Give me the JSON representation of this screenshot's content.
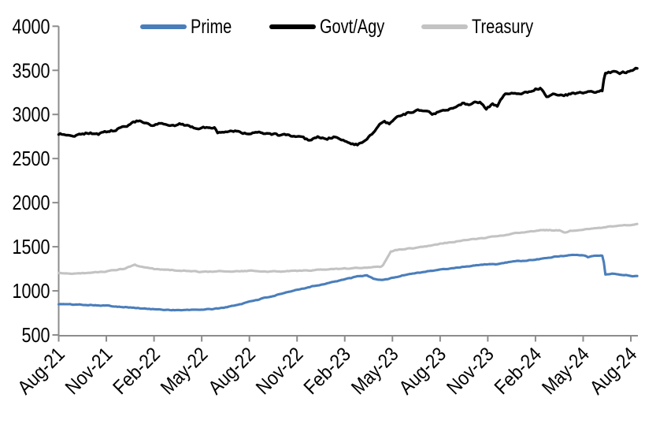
{
  "chart_data": {
    "type": "line",
    "title": "",
    "grid": false,
    "background_color": "#ffffff",
    "axis_color": "#8c8c8c",
    "legend_position": "top",
    "x_axis": {
      "months_span": 36,
      "tick_months": [
        0,
        3,
        6,
        9,
        12,
        15,
        18,
        21,
        24,
        27,
        30,
        33,
        36
      ],
      "tick_labels": [
        "Aug-21",
        "Nov-21",
        "Feb-22",
        "May-22",
        "Aug-22",
        "Nov-22",
        "Feb-23",
        "May-23",
        "Aug-23",
        "Nov-23",
        "Feb-24",
        "May-24",
        "Aug-24"
      ]
    },
    "y_axis": {
      "min": 500,
      "max": 4000,
      "step": 500,
      "tick_labels": [
        "500",
        "1000",
        "1500",
        "2000",
        "2500",
        "3000",
        "3500",
        "4000"
      ]
    },
    "series": [
      {
        "name": "Prime",
        "color": "#4a7ebb",
        "points": [
          [
            0,
            850
          ],
          [
            0.5,
            848
          ],
          [
            1,
            845
          ],
          [
            2,
            841
          ],
          [
            3,
            832
          ],
          [
            4,
            819
          ],
          [
            5,
            804
          ],
          [
            5.5,
            797
          ],
          [
            6,
            791
          ],
          [
            7,
            784
          ],
          [
            7.6,
            781
          ],
          [
            8.3,
            783
          ],
          [
            9,
            788
          ],
          [
            9.6,
            793
          ],
          [
            10,
            801
          ],
          [
            10.5,
            813
          ],
          [
            11,
            831
          ],
          [
            11.5,
            853
          ],
          [
            12,
            879
          ],
          [
            13,
            921
          ],
          [
            14,
            963
          ],
          [
            15,
            1011
          ],
          [
            16,
            1054
          ],
          [
            16.6,
            1072
          ],
          [
            17,
            1094
          ],
          [
            17.5,
            1110
          ],
          [
            18,
            1130
          ],
          [
            18.8,
            1162
          ],
          [
            19.4,
            1175
          ],
          [
            19.8,
            1140
          ],
          [
            20.3,
            1120
          ],
          [
            20.8,
            1138
          ],
          [
            21.2,
            1155
          ],
          [
            22,
            1190
          ],
          [
            23,
            1216
          ],
          [
            24,
            1240
          ],
          [
            25,
            1262
          ],
          [
            26,
            1285
          ],
          [
            27,
            1303
          ],
          [
            27.5,
            1298
          ],
          [
            28,
            1318
          ],
          [
            29,
            1338
          ],
          [
            30,
            1352
          ],
          [
            30.5,
            1368
          ],
          [
            31,
            1382
          ],
          [
            32,
            1402
          ],
          [
            32.6,
            1412
          ],
          [
            33,
            1406
          ],
          [
            33.3,
            1383
          ],
          [
            33.7,
            1398
          ],
          [
            34.25,
            1396
          ],
          [
            34.4,
            1188
          ],
          [
            34.8,
            1196
          ],
          [
            35.3,
            1184
          ],
          [
            35.8,
            1178
          ],
          [
            36,
            1172
          ],
          [
            36.4,
            1164
          ]
        ]
      },
      {
        "name": "Govt/Agy",
        "color": "#000000",
        "points": [
          [
            0,
            2780
          ],
          [
            0.6,
            2768
          ],
          [
            1,
            2762
          ],
          [
            1.5,
            2782
          ],
          [
            2,
            2790
          ],
          [
            2.5,
            2778
          ],
          [
            3,
            2802
          ],
          [
            3.6,
            2822
          ],
          [
            4,
            2852
          ],
          [
            4.5,
            2888
          ],
          [
            5,
            2930
          ],
          [
            5.4,
            2902
          ],
          [
            5.8,
            2868
          ],
          [
            6.4,
            2896
          ],
          [
            7,
            2862
          ],
          [
            7.6,
            2888
          ],
          [
            8.2,
            2862
          ],
          [
            8.8,
            2846
          ],
          [
            9.3,
            2852
          ],
          [
            9.8,
            2856
          ],
          [
            10,
            2792
          ],
          [
            10.4,
            2802
          ],
          [
            11,
            2816
          ],
          [
            11.6,
            2796
          ],
          [
            12,
            2788
          ],
          [
            12.5,
            2802
          ],
          [
            13,
            2772
          ],
          [
            13.6,
            2782
          ],
          [
            14,
            2758
          ],
          [
            14.5,
            2768
          ],
          [
            15,
            2742
          ],
          [
            15.8,
            2712
          ],
          [
            16.3,
            2748
          ],
          [
            16.8,
            2716
          ],
          [
            17.3,
            2744
          ],
          [
            17.8,
            2714
          ],
          [
            18.1,
            2690
          ],
          [
            18.5,
            2668
          ],
          [
            18.8,
            2660
          ],
          [
            19.1,
            2672
          ],
          [
            19.5,
            2748
          ],
          [
            19.9,
            2810
          ],
          [
            20.2,
            2876
          ],
          [
            20.5,
            2910
          ],
          [
            20.8,
            2890
          ],
          [
            21.2,
            2958
          ],
          [
            21.6,
            2996
          ],
          [
            22.2,
            3028
          ],
          [
            22.8,
            3046
          ],
          [
            23.2,
            3052
          ],
          [
            23.5,
            2990
          ],
          [
            23.9,
            3030
          ],
          [
            24.4,
            3050
          ],
          [
            25,
            3086
          ],
          [
            25.5,
            3136
          ],
          [
            25.8,
            3108
          ],
          [
            26.2,
            3158
          ],
          [
            26.6,
            3128
          ],
          [
            26.9,
            3064
          ],
          [
            27.3,
            3122
          ],
          [
            27.6,
            3100
          ],
          [
            27.9,
            3180
          ],
          [
            28.1,
            3228
          ],
          [
            28.5,
            3242
          ],
          [
            29,
            3228
          ],
          [
            29.5,
            3256
          ],
          [
            30,
            3288
          ],
          [
            30.3,
            3298
          ],
          [
            30.7,
            3206
          ],
          [
            31.2,
            3236
          ],
          [
            31.7,
            3222
          ],
          [
            32.2,
            3228
          ],
          [
            32.7,
            3244
          ],
          [
            33.2,
            3250
          ],
          [
            33.7,
            3258
          ],
          [
            34.2,
            3272
          ],
          [
            34.35,
            3462
          ],
          [
            34.6,
            3472
          ],
          [
            34.9,
            3480
          ],
          [
            35.2,
            3462
          ],
          [
            35.7,
            3482
          ],
          [
            36.1,
            3512
          ],
          [
            36.4,
            3528
          ]
        ]
      },
      {
        "name": "Treasury",
        "color": "#c3c3c3",
        "points": [
          [
            0,
            1200
          ],
          [
            1,
            1196
          ],
          [
            2,
            1205
          ],
          [
            3,
            1221
          ],
          [
            4,
            1246
          ],
          [
            4.8,
            1292
          ],
          [
            5.3,
            1268
          ],
          [
            6,
            1246
          ],
          [
            7,
            1236
          ],
          [
            8,
            1226
          ],
          [
            9,
            1214
          ],
          [
            10,
            1224
          ],
          [
            11,
            1220
          ],
          [
            12,
            1227
          ],
          [
            13,
            1217
          ],
          [
            14,
            1222
          ],
          [
            15,
            1227
          ],
          [
            16,
            1232
          ],
          [
            17,
            1242
          ],
          [
            18,
            1252
          ],
          [
            19,
            1260
          ],
          [
            20,
            1268
          ],
          [
            20.35,
            1274
          ],
          [
            20.9,
            1448
          ],
          [
            21.3,
            1464
          ],
          [
            22,
            1478
          ],
          [
            22.6,
            1492
          ],
          [
            23,
            1504
          ],
          [
            24,
            1534
          ],
          [
            25,
            1560
          ],
          [
            26,
            1582
          ],
          [
            27,
            1606
          ],
          [
            28,
            1632
          ],
          [
            29,
            1660
          ],
          [
            29.8,
            1678
          ],
          [
            30.5,
            1690
          ],
          [
            31.5,
            1687
          ],
          [
            31.8,
            1656
          ],
          [
            32.2,
            1680
          ],
          [
            33,
            1698
          ],
          [
            34,
            1716
          ],
          [
            35,
            1731
          ],
          [
            36,
            1748
          ],
          [
            36.4,
            1756
          ]
        ]
      }
    ]
  }
}
